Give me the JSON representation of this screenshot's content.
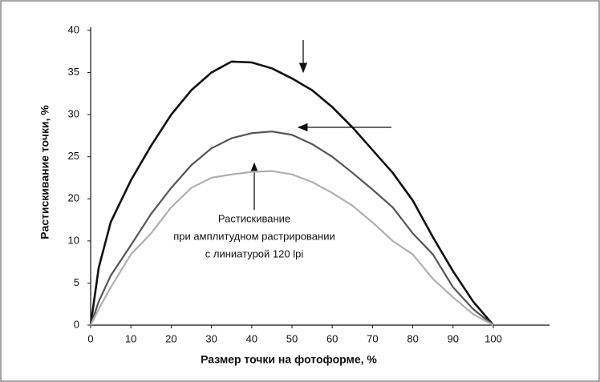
{
  "chart_data": {
    "type": "line",
    "xlabel": "Размер точки на фотоформе, %",
    "ylabel": "Растискивание точки, %",
    "annotation": [
      "Растискивание",
      "при амплитудном растрировании",
      "с линиатурой 120 lpi"
    ],
    "x": [
      0,
      2,
      5,
      10,
      15,
      20,
      25,
      30,
      35,
      40,
      45,
      50,
      55,
      60,
      65,
      70,
      75,
      80,
      85,
      90,
      95,
      100
    ],
    "series": [
      {
        "color": "#111111",
        "values": [
          0,
          6.8,
          14.5,
          22.2,
          26.3,
          30,
          32.9,
          35,
          36.3,
          36.2,
          35.5,
          34.3,
          32.9,
          30.9,
          28.5,
          25.8,
          23.1,
          19.6,
          10.9,
          6.4,
          2.8,
          0
        ]
      },
      {
        "color": "#555555",
        "values": [
          0,
          2.8,
          5.9,
          9.5,
          16.4,
          21.3,
          24,
          26,
          27.2,
          27.8,
          28,
          27.6,
          26.5,
          25,
          23.1,
          21.1,
          18,
          11.8,
          8.4,
          4.5,
          1.9,
          0
        ]
      },
      {
        "color": "#b0b0b0",
        "values": [
          0,
          1.9,
          4.5,
          8.4,
          11.8,
          18,
          21.3,
          22.5,
          22.9,
          23.2,
          23.3,
          22.9,
          22,
          20.7,
          18.4,
          14.4,
          10,
          8.4,
          5.5,
          3.3,
          1.3,
          0
        ]
      }
    ],
    "xlim": [
      0,
      114
    ],
    "xticks": [
      0,
      10,
      20,
      30,
      40,
      50,
      60,
      70,
      80,
      90,
      100
    ],
    "ylim": [
      0,
      40
    ],
    "yticks": [
      0,
      5,
      10,
      20,
      25,
      30,
      35,
      40
    ]
  }
}
